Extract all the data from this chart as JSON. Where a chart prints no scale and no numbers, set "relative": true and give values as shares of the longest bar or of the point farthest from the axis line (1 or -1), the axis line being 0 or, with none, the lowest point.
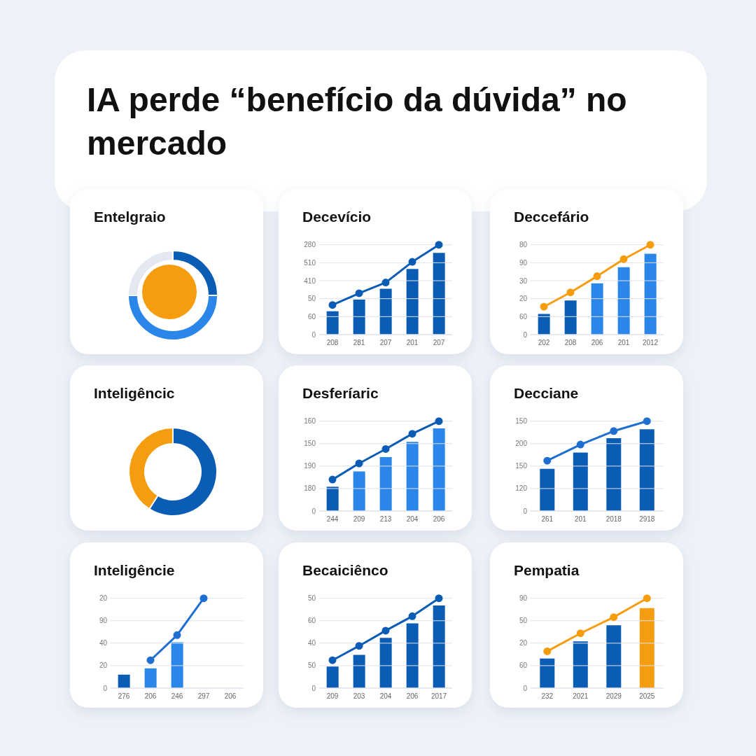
{
  "chart_data": [
    {
      "type": "other",
      "title": "IA perde “benefício da dúvida” no mercado"
    },
    {
      "type": "donut",
      "title": "Entelgraio",
      "categories": [
        null,
        null,
        null
      ],
      "values": [
        25,
        50,
        25
      ],
      "colors": [
        "#0b5cb5",
        "#2a86e8",
        "#e4e9f1"
      ]
    },
    {
      "type": "bar",
      "title": "Decevício",
      "categories": [
        "208",
        "281",
        "207",
        "201",
        "207"
      ],
      "relative": true,
      "annotations": [
        "280",
        "510",
        "410",
        "50",
        "60",
        "0"
      ],
      "grid": "y",
      "marker": "circle",
      "series": [
        {
          "type": "bar",
          "values": [
            0.26,
            0.39,
            0.51,
            0.73,
            0.91
          ],
          "colors": [
            "#0b5cb5",
            "#0b5cb5",
            "#0b5cb5",
            "#0b5cb5",
            "#0b5cb5"
          ]
        },
        {
          "type": "line",
          "color": "#0b5cb5",
          "values": [
            0.33,
            0.46,
            0.58,
            0.81,
            1
          ]
        }
      ]
    },
    {
      "type": "bar",
      "title": "Deccefário",
      "categories": [
        "202",
        "208",
        "206",
        "201",
        "2012"
      ],
      "relative": true,
      "annotations": [
        "80",
        "90",
        "30",
        "20",
        "60",
        "0"
      ],
      "grid": "y",
      "marker": "circle",
      "series": [
        {
          "type": "bar",
          "values": [
            0.23,
            0.38,
            0.57,
            0.75,
            0.9
          ],
          "colors": [
            "#0b5cb5",
            "#0b5cb5",
            "#2a86e8",
            "#2a86e8",
            "#2a86e8"
          ]
        },
        {
          "type": "line",
          "color": "#f59c0f",
          "values": [
            0.31,
            0.47,
            0.65,
            0.84,
            1
          ]
        }
      ]
    },
    {
      "type": "donut",
      "title": "Inteligêncic",
      "categories": [
        null,
        null
      ],
      "values": [
        59,
        41
      ],
      "colors": [
        "#0b5cb5",
        "#f59c0f"
      ]
    },
    {
      "type": "bar",
      "title": "Desferíaric",
      "categories": [
        "244",
        "209",
        "213",
        "204",
        "206"
      ],
      "relative": true,
      "annotations": [
        "160",
        "150",
        "190",
        "180",
        "0"
      ],
      "grid": "y",
      "marker": "circle",
      "series": [
        {
          "type": "bar",
          "values": [
            0.27,
            0.44,
            0.6,
            0.77,
            0.92
          ],
          "colors": [
            "#0b5cb5",
            "#2a86e8",
            "#2a86e8",
            "#2a86e8",
            "#2a86e8"
          ]
        },
        {
          "type": "line",
          "color": "#0b5cb5",
          "values": [
            0.35,
            0.53,
            0.69,
            0.86,
            1
          ]
        }
      ]
    },
    {
      "type": "bar",
      "title": "Decciane",
      "categories": [
        "261",
        "201",
        "2018",
        "2918"
      ],
      "relative": true,
      "annotations": [
        "150",
        "200",
        "150",
        "120",
        "0"
      ],
      "grid": "y",
      "marker": "circle",
      "series": [
        {
          "type": "bar",
          "values": [
            0.47,
            0.65,
            0.81,
            0.91
          ],
          "colors": [
            "#0b5cb5",
            "#0b5cb5",
            "#0b5cb5",
            "#0b5cb5"
          ]
        },
        {
          "type": "line",
          "color": "#1f6fd1",
          "values": [
            0.56,
            0.74,
            0.89,
            1
          ]
        }
      ]
    },
    {
      "type": "bar",
      "title": "Inteligêncie",
      "categories": [
        "276",
        "206",
        "246",
        "297",
        "206"
      ],
      "relative": true,
      "annotations": [
        "20",
        "90",
        "40",
        "20",
        "0"
      ],
      "grid": "y",
      "marker": "circle",
      "series": [
        {
          "type": "bar",
          "values": [
            0.15,
            0.22,
            0.51,
            null,
            null
          ],
          "colors": [
            "#0b5cb5",
            "#2a86e8",
            "#2a86e8",
            "#2a86e8",
            "#2a86e8"
          ]
        },
        {
          "type": "line",
          "color": "#1f6fd1",
          "values": [
            null,
            0.31,
            0.59,
            1,
            null
          ]
        }
      ]
    },
    {
      "type": "bar",
      "title": "Becaiciênco",
      "categories": [
        "209",
        "203",
        "204",
        "206",
        "2017"
      ],
      "relative": true,
      "annotations": [
        "50",
        "60",
        "40",
        "50",
        "0"
      ],
      "grid": "y",
      "marker": "circle",
      "series": [
        {
          "type": "bar",
          "values": [
            0.24,
            0.37,
            0.56,
            0.72,
            0.92
          ],
          "colors": [
            "#0b5cb5",
            "#0b5cb5",
            "#0b5cb5",
            "#0b5cb5",
            "#0b5cb5"
          ]
        },
        {
          "type": "line",
          "color": "#0b5cb5",
          "values": [
            0.31,
            0.47,
            0.64,
            0.8,
            1
          ]
        }
      ]
    },
    {
      "type": "bar",
      "title": "Pempatia",
      "categories": [
        "232",
        "2021",
        "2029",
        "2025"
      ],
      "relative": true,
      "annotations": [
        "90",
        "50",
        "20",
        "60",
        "0"
      ],
      "grid": "y",
      "marker": "circle",
      "series": [
        {
          "type": "bar",
          "values": [
            0.33,
            0.52,
            0.7,
            0.89
          ],
          "colors": [
            "#0b5cb5",
            "#0b5cb5",
            "#0b5cb5",
            "#f59c0f"
          ]
        },
        {
          "type": "line",
          "color": "#f59c0f",
          "values": [
            0.41,
            0.61,
            0.79,
            1
          ]
        }
      ]
    }
  ]
}
